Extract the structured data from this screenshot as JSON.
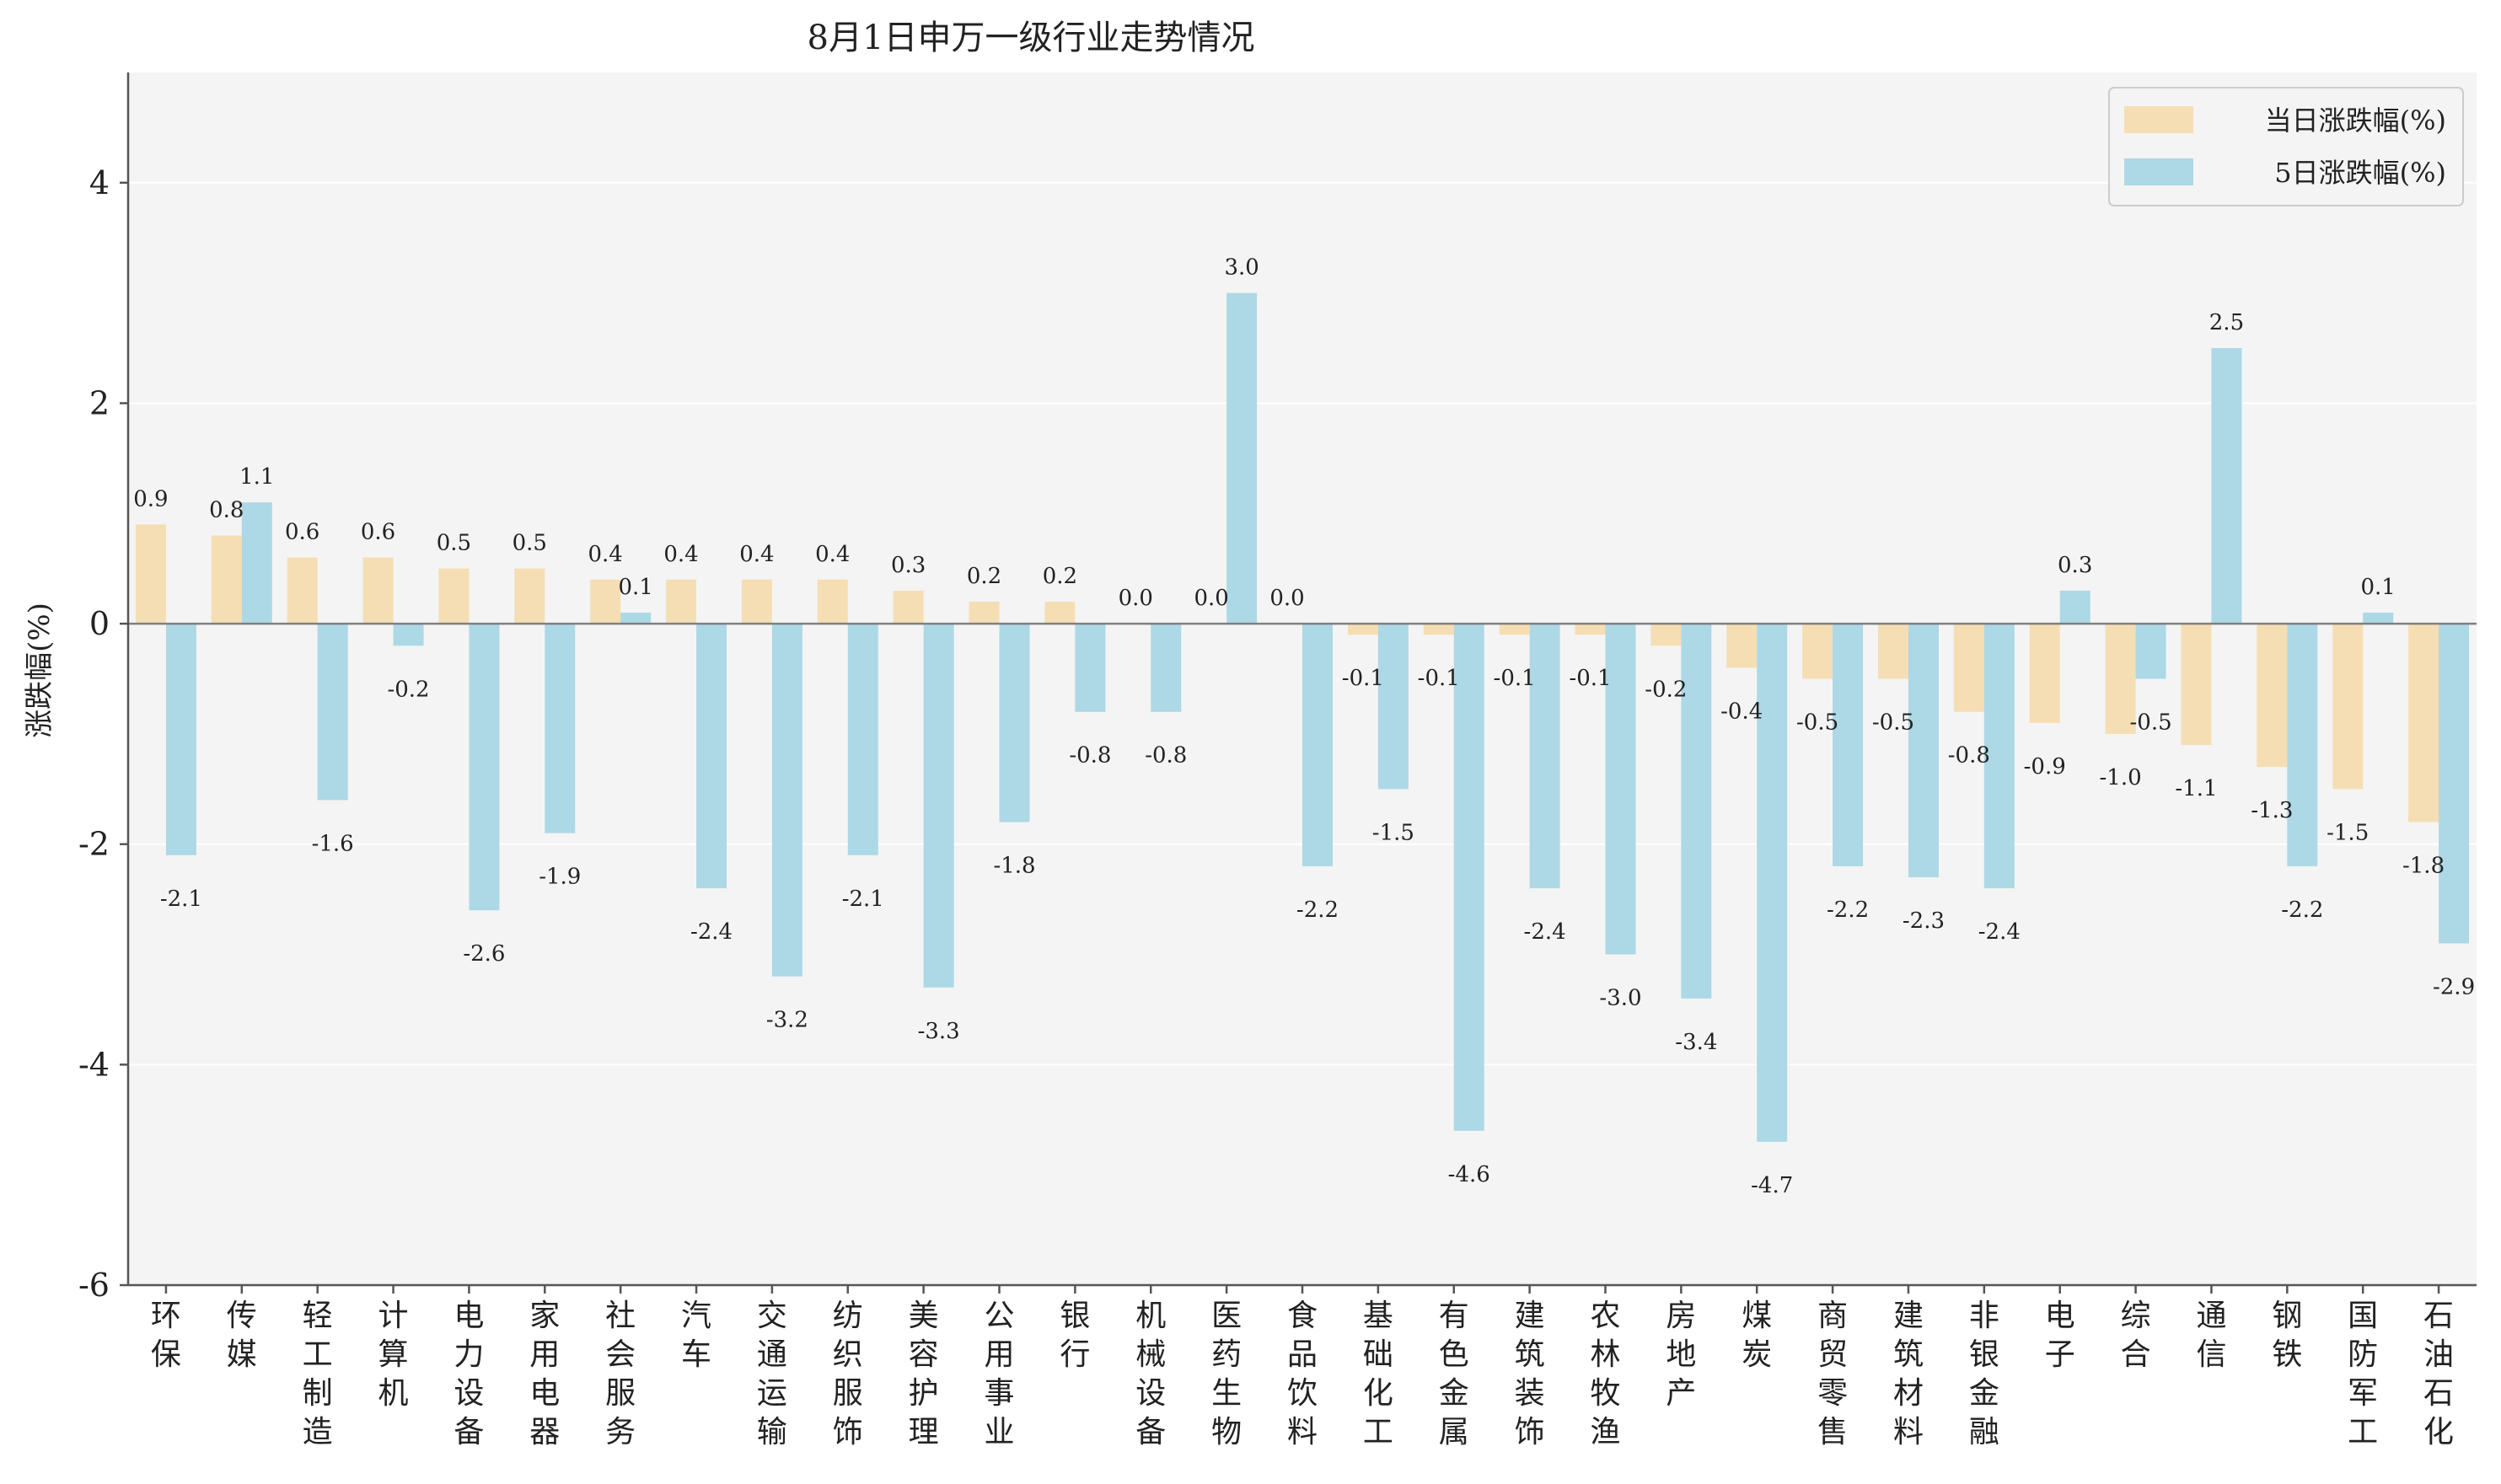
{
  "chart_data": {
    "type": "bar",
    "title": "8月1日申万一级行业走势情况",
    "xlabel": "",
    "ylabel": "涨跌幅(%)",
    "ylim": [
      -6,
      5
    ],
    "yticks": [
      -6,
      -4,
      -2,
      0,
      2,
      4
    ],
    "grid": true,
    "legend_position": "top-right",
    "categories": [
      "环保",
      "传媒",
      "轻工制造",
      "计算机",
      "电力设备",
      "家用电器",
      "社会服务",
      "汽车",
      "交通运输",
      "纺织服饰",
      "美容护理",
      "公用事业",
      "银行",
      "机械设备",
      "医药生物",
      "食品饮料",
      "基础化工",
      "有色金属",
      "建筑装饰",
      "农林牧渔",
      "房地产",
      "煤炭",
      "商贸零售",
      "建筑材料",
      "非银金融",
      "电子",
      "综合",
      "通信",
      "钢铁",
      "国防军工",
      "石油石化"
    ],
    "series": [
      {
        "name": "当日涨跌幅(%)",
        "color": "#f5deb3",
        "values": [
          0.9,
          0.8,
          0.6,
          0.6,
          0.5,
          0.5,
          0.4,
          0.4,
          0.4,
          0.4,
          0.3,
          0.2,
          0.2,
          0.0,
          0.0,
          0.0,
          -0.1,
          -0.1,
          -0.1,
          -0.1,
          -0.2,
          -0.4,
          -0.5,
          -0.5,
          -0.8,
          -0.9,
          -1.0,
          -1.1,
          -1.3,
          -1.5,
          -1.8
        ]
      },
      {
        "name": "5日涨跌幅(%)",
        "color": "#add8e6",
        "values": [
          -2.1,
          1.1,
          -1.6,
          -0.2,
          -2.6,
          -1.9,
          0.1,
          -2.4,
          -3.2,
          -2.1,
          -3.3,
          -1.8,
          -0.8,
          -0.8,
          3.0,
          -2.2,
          -1.5,
          -4.6,
          -2.4,
          -3.0,
          -3.4,
          -4.7,
          -2.2,
          -2.3,
          -2.4,
          0.3,
          -0.5,
          2.5,
          -2.2,
          0.1,
          -2.9
        ]
      }
    ]
  },
  "colors": {
    "plot_bg": "#f4f4f4",
    "axis": "#555555",
    "zero_line": "#808080",
    "grid": "#ffffff"
  }
}
